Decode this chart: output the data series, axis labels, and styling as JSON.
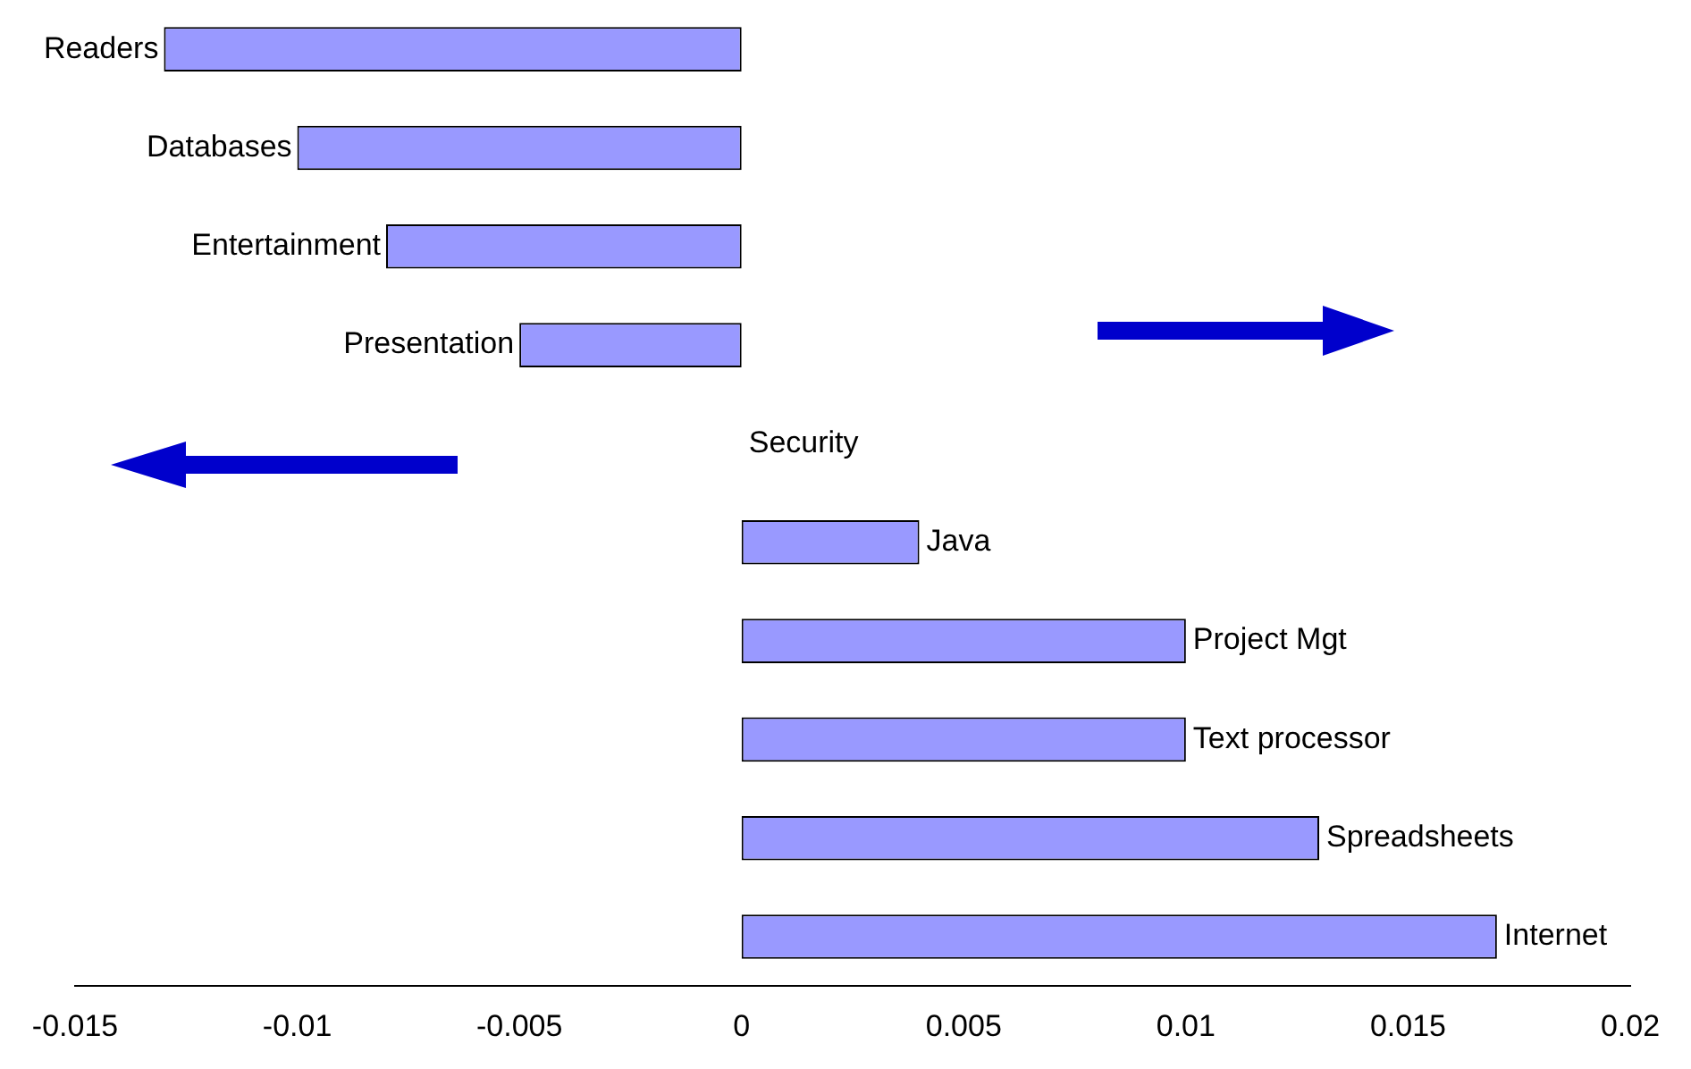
{
  "chart_data": {
    "type": "bar",
    "orientation": "horizontal",
    "categories": [
      "Readers",
      "Databases",
      "Entertainment",
      "Presentation",
      "Security",
      "Java",
      "Project Mgt",
      "Text processor",
      "Spreadsheets",
      "Internet"
    ],
    "values": [
      -0.013,
      -0.01,
      -0.008,
      -0.005,
      0,
      0.004,
      0.01,
      0.01,
      0.013,
      0.017
    ],
    "color": "#9999ff",
    "xlim": [
      -0.015,
      0.02
    ],
    "xticks": [
      -0.015,
      -0.01,
      -0.005,
      0,
      0.005,
      0.01,
      0.015,
      0.02
    ],
    "grid": false,
    "legend": false
  }
}
